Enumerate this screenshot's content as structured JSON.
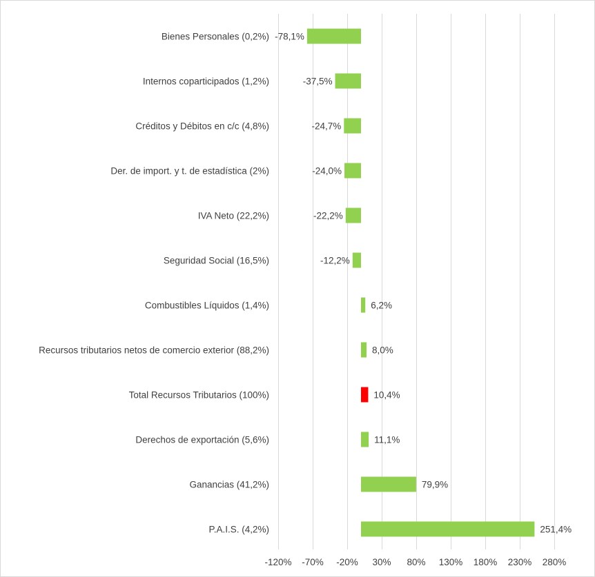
{
  "chart_data": {
    "type": "bar",
    "orientation": "horizontal",
    "categories": [
      "Bienes Personales (0,2%)",
      "Internos coparticipados (1,2%)",
      "Créditos y Débitos en c/c (4,8%)",
      "Der. de import. y t. de estadística (2%)",
      "IVA Neto (22,2%)",
      "Seguridad Social (16,5%)",
      "Combustibles Líquidos (1,4%)",
      "Recursos tributarios netos de comercio exterior (88,2%)",
      "Total Recursos Tributarios (100%)",
      "Derechos de exportación (5,6%)",
      "Ganancias (41,2%)",
      "P.A.I.S. (4,2%)"
    ],
    "values": [
      -78.1,
      -37.5,
      -24.7,
      -24.0,
      -22.2,
      -12.2,
      6.2,
      8.0,
      10.4,
      11.1,
      79.9,
      251.4
    ],
    "data_labels": [
      "-78,1%",
      "-37,5%",
      "-24,7%",
      "-24,0%",
      "-22,2%",
      "-12,2%",
      "6,2%",
      "8,0%",
      "10,4%",
      "11,1%",
      "79,9%",
      "251,4%"
    ],
    "bar_colors": [
      "#92d050",
      "#92d050",
      "#92d050",
      "#92d050",
      "#92d050",
      "#92d050",
      "#92d050",
      "#92d050",
      "#ff0000",
      "#92d050",
      "#92d050",
      "#92d050"
    ],
    "xlim": [
      -120,
      305
    ],
    "x_ticks": [
      -120,
      -70,
      -20,
      30,
      80,
      130,
      180,
      230,
      280
    ],
    "x_tick_labels": [
      "-120%",
      "-70%",
      "-20%",
      "30%",
      "80%",
      "130%",
      "180%",
      "230%",
      "280%"
    ],
    "grid": true,
    "legend": "none",
    "title": "",
    "xlabel": "",
    "ylabel": ""
  }
}
